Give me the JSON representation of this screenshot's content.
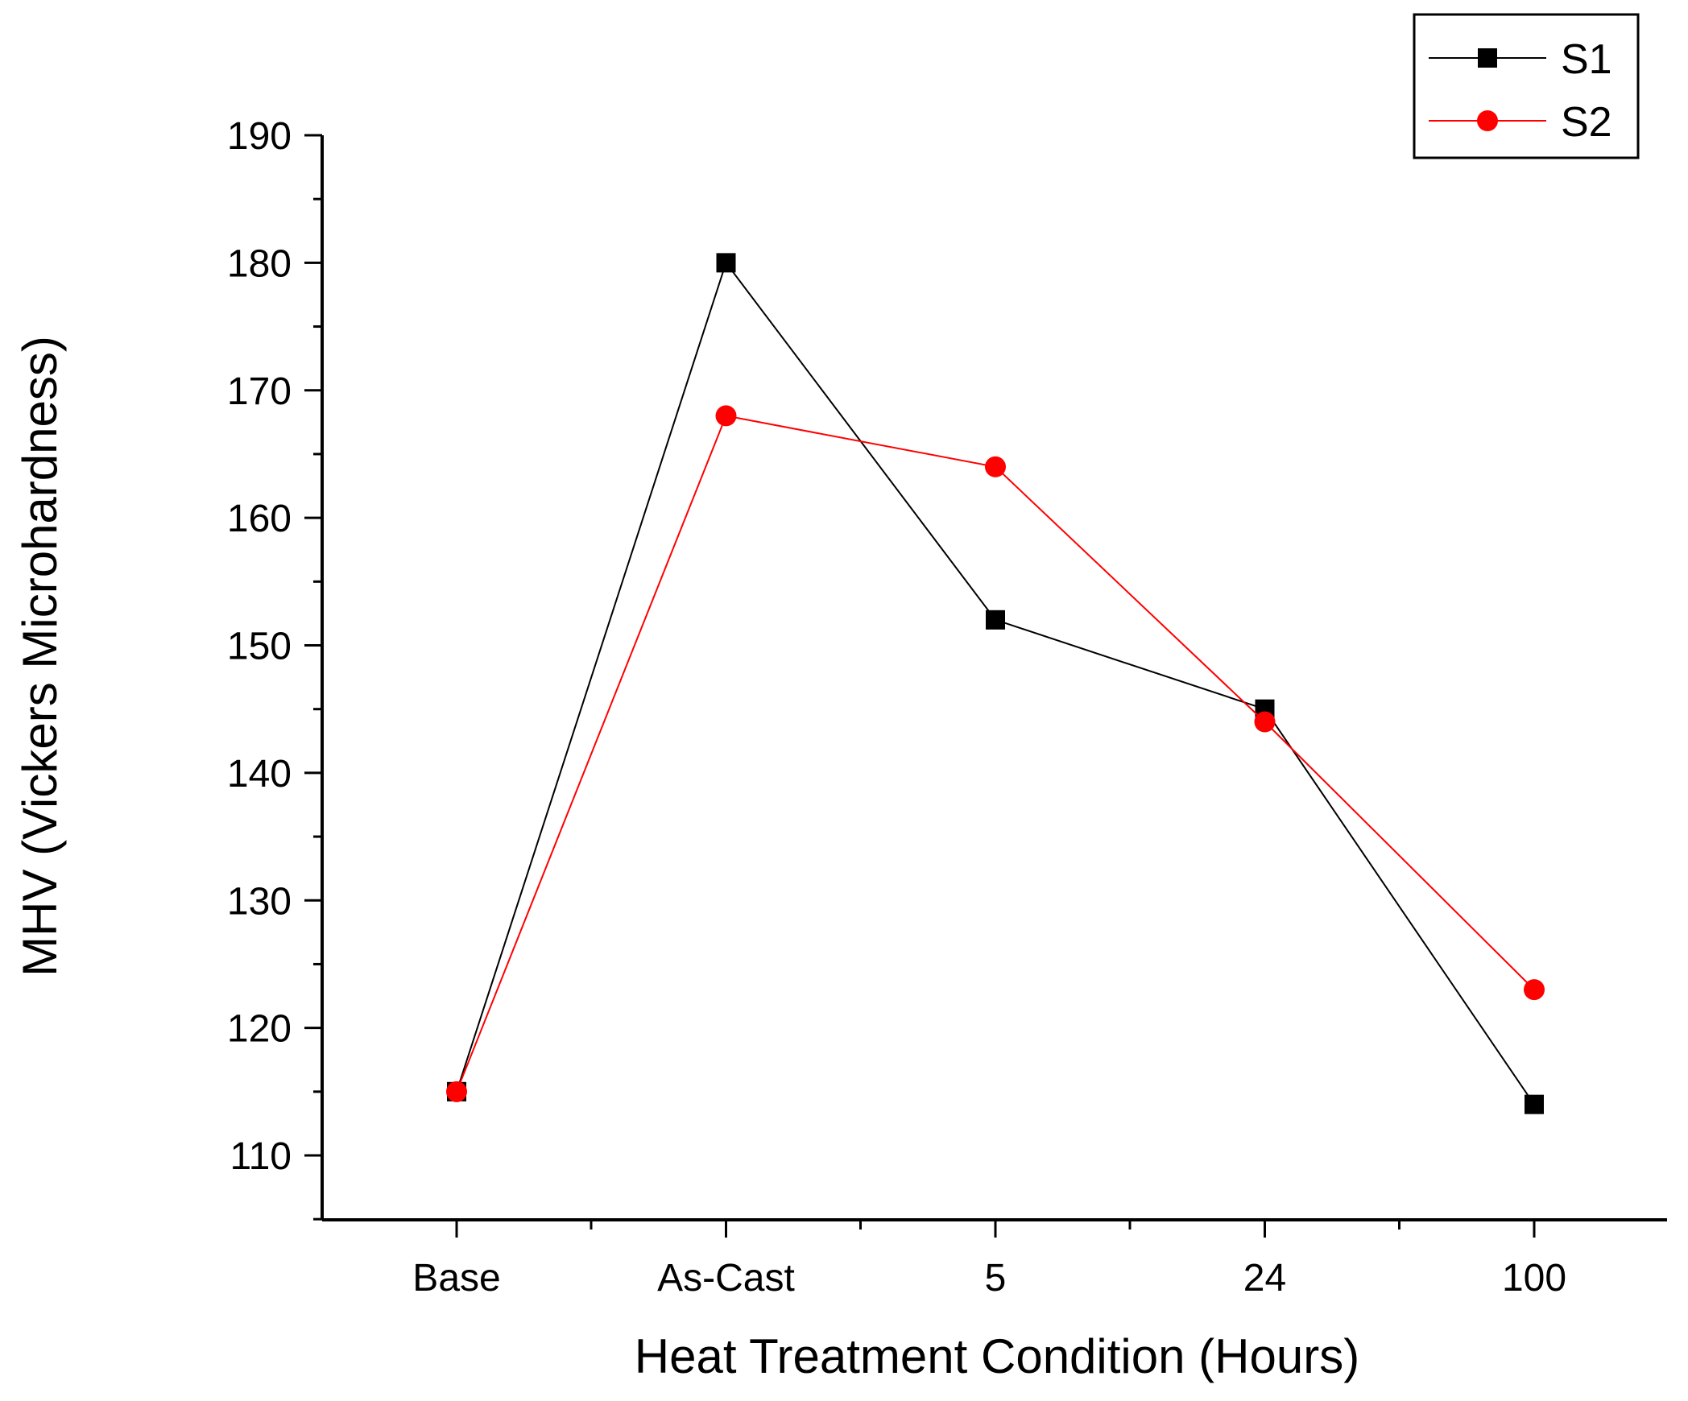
{
  "chart_data": {
    "type": "line",
    "title": "",
    "xlabel": "Heat Treatment Condition (Hours)",
    "ylabel": "MHV (Vickers Microhardness)",
    "categories": [
      "Base",
      "As-Cast",
      "5",
      "24",
      "100"
    ],
    "ylim": [
      105,
      190
    ],
    "yticks": [
      110,
      120,
      130,
      140,
      150,
      160,
      170,
      180,
      190
    ],
    "grid": false,
    "legend_position": "top-right",
    "series": [
      {
        "name": "S1",
        "color": "#000000",
        "marker": "square",
        "values": [
          115,
          180,
          152,
          145,
          114
        ]
      },
      {
        "name": "S2",
        "color": "#ff0000",
        "marker": "circle",
        "values": [
          115,
          168,
          164,
          144,
          123
        ]
      }
    ]
  }
}
